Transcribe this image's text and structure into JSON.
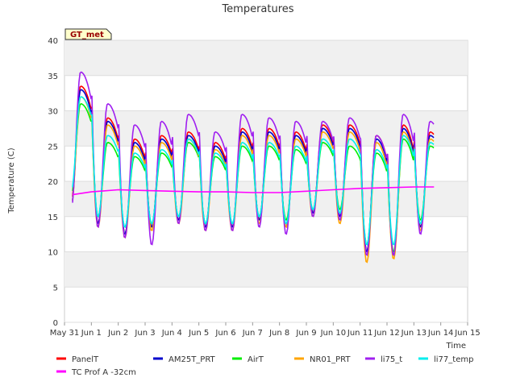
{
  "chart_data": {
    "type": "line",
    "title": "Temperatures",
    "xlabel": "Time",
    "ylabel": "Temperature (C)",
    "site_label": "GT_met",
    "ylim": [
      0,
      40
    ],
    "yticks": [
      0,
      5,
      10,
      15,
      20,
      25,
      30,
      35,
      40
    ],
    "xlim": [
      0,
      15
    ],
    "xtick_labels": [
      "May 31",
      "Jun 1",
      "Jun 2",
      "Jun 3",
      "Jun 4",
      "Jun 5",
      "Jun 6",
      "Jun 7",
      "Jun 8",
      "Jun 9",
      "Jun 10",
      "Jun 11",
      "Jun 12",
      "Jun 13",
      "Jun 14",
      "Jun 15"
    ],
    "grid": true,
    "legend_position": "bottom",
    "x_note": "x values are day offsets from May 31",
    "series": [
      {
        "name": "PanelT",
        "color": "#ff0000",
        "mins": [
          17,
          14,
          12.5,
          13.5,
          14.5,
          13.5,
          13.5,
          14.5,
          13.5,
          15.5,
          15,
          10,
          9.5,
          13.5
        ],
        "maxs": [
          33.5,
          29,
          26,
          26.5,
          27,
          25.5,
          27.5,
          27.5,
          27,
          28,
          28,
          26.5,
          28,
          27
        ]
      },
      {
        "name": "AM25T_PRT",
        "color": "#0000cc",
        "mins": [
          16.5,
          14,
          12.5,
          13.5,
          14.5,
          13.5,
          13.5,
          14.5,
          13.5,
          15.5,
          15,
          10,
          9.5,
          13.5
        ],
        "maxs": [
          33,
          28.5,
          25.5,
          26,
          26.5,
          25,
          27,
          27,
          26.5,
          27.5,
          27.5,
          26,
          27.5,
          26.5
        ]
      },
      {
        "name": "AirT",
        "color": "#00ee00",
        "mins": [
          18,
          15,
          13.5,
          14,
          15,
          14,
          14,
          15,
          14.5,
          16,
          16,
          11,
          10,
          14.5
        ],
        "maxs": [
          31,
          25.5,
          23.5,
          24,
          25.5,
          23.5,
          25,
          25,
          24.5,
          25.5,
          25,
          24,
          26,
          25
        ]
      },
      {
        "name": "NR01_PRT",
        "color": "#ffa500",
        "mins": [
          16.5,
          13.5,
          12,
          13,
          14,
          13,
          13,
          14,
          13.5,
          15,
          14,
          8.5,
          9,
          13
        ],
        "maxs": [
          32,
          28,
          25,
          25.5,
          26,
          24.5,
          26.5,
          26.5,
          26,
          27,
          27,
          25.5,
          27,
          26
        ]
      },
      {
        "name": "li75_t",
        "color": "#a020f0",
        "mins": [
          16,
          13.5,
          12,
          11,
          14,
          13,
          13,
          13.5,
          12.5,
          15,
          14.5,
          9.5,
          9.5,
          12.5
        ],
        "maxs": [
          35.5,
          31,
          28,
          28.5,
          29.5,
          27,
          29.5,
          29,
          28.5,
          28.5,
          29,
          26.5,
          29.5,
          28.5
        ]
      },
      {
        "name": "li77_temp",
        "color": "#00eeee",
        "mins": [
          18.5,
          15,
          13.5,
          14,
          15,
          14,
          14,
          15,
          14,
          16,
          15.5,
          11,
          11,
          14
        ],
        "maxs": [
          32,
          26.5,
          24,
          24.5,
          26,
          24,
          25.5,
          25.5,
          25,
          26,
          26,
          24.5,
          26.5,
          25.5
        ]
      },
      {
        "name": "TC Prof A -32cm",
        "color": "#ff00ff",
        "x": [
          0.3,
          1,
          2,
          3,
          4,
          5,
          6,
          7,
          8,
          9,
          10,
          11,
          12,
          13,
          13.75
        ],
        "y": [
          18.1,
          18.5,
          18.8,
          18.7,
          18.6,
          18.5,
          18.5,
          18.4,
          18.4,
          18.6,
          18.8,
          19.0,
          19.1,
          19.2,
          19.2
        ]
      }
    ]
  }
}
